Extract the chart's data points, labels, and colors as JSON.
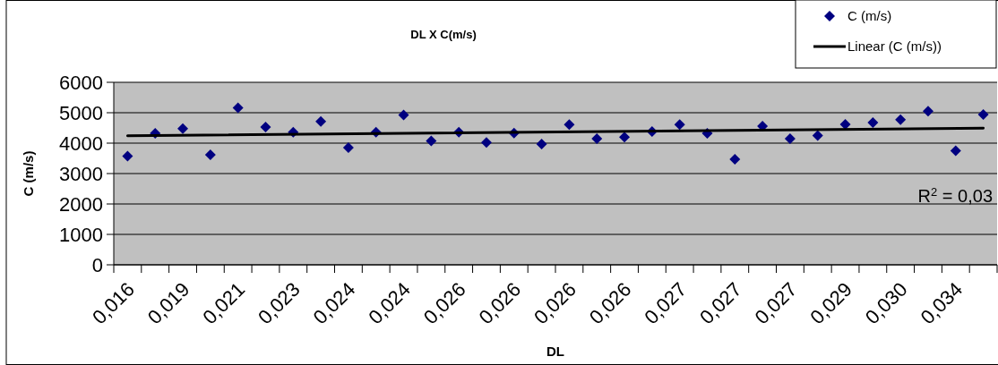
{
  "chart_data": {
    "type": "scatter",
    "title": "DL X C(m/s)",
    "xlabel": "DL",
    "ylabel": "C (m/s)",
    "categories": [
      "0,016",
      null,
      "0,019",
      null,
      "0,021",
      null,
      "0,023",
      null,
      "0,024",
      null,
      "0,024",
      null,
      "0,026",
      null,
      "0,026",
      null,
      "0,026",
      null,
      "0,026",
      null,
      "0,027",
      null,
      "0,027",
      null,
      "0,027",
      null,
      "0,029",
      null,
      "0,030",
      null,
      "0,034",
      null
    ],
    "series": [
      {
        "name": "C (m/s)",
        "color": "#000080",
        "marker": "diamond",
        "values": [
          3570,
          4320,
          4480,
          3620,
          5160,
          4530,
          4360,
          4710,
          3850,
          4360,
          4930,
          4070,
          4360,
          4020,
          4330,
          3970,
          4610,
          4150,
          4200,
          4380,
          4610,
          4320,
          3470,
          4560,
          4150,
          4250,
          4620,
          4680,
          4770,
          5050,
          3750,
          4940
        ]
      },
      {
        "name": "Linear (C (m/s))",
        "type": "line",
        "color": "#000000",
        "line_style": "solid",
        "values": [
          4240,
          null,
          null,
          null,
          null,
          null,
          null,
          null,
          null,
          null,
          null,
          null,
          null,
          null,
          null,
          null,
          null,
          null,
          null,
          null,
          null,
          null,
          null,
          null,
          null,
          null,
          null,
          null,
          null,
          null,
          null,
          4490
        ]
      }
    ],
    "ylim": [
      0,
      6000
    ],
    "yticks": [
      0,
      1000,
      2000,
      3000,
      4000,
      5000,
      6000
    ],
    "grid": "y",
    "legend": "top right",
    "annotations": [
      "R$^{2}$ = 0,03"
    ]
  }
}
